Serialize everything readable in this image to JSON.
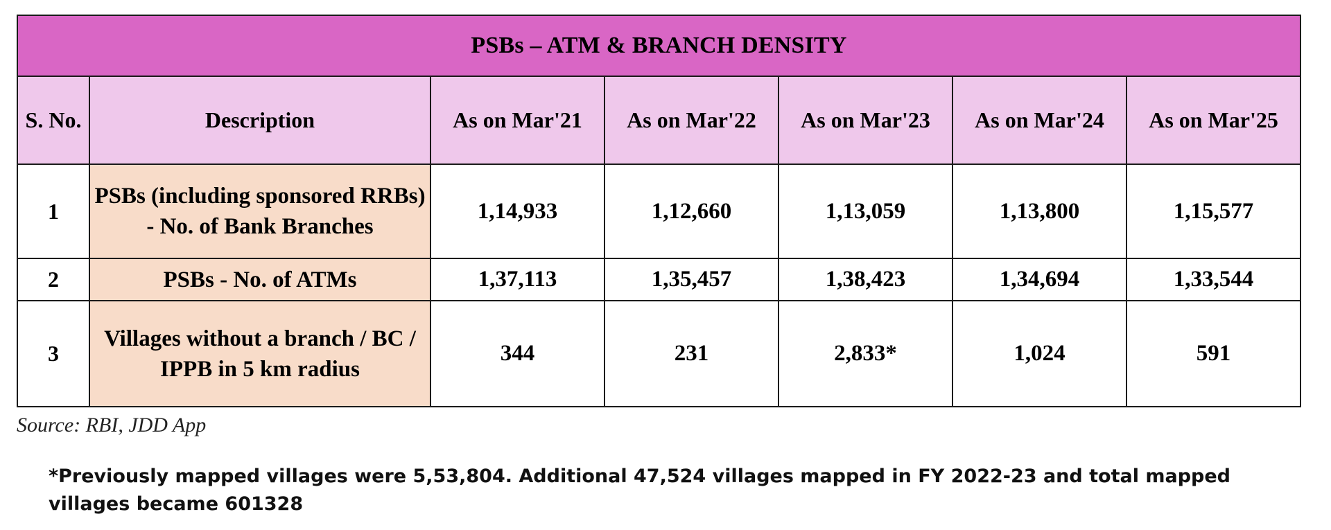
{
  "table": {
    "title": "PSBs – ATM & BRANCH DENSITY",
    "headers": {
      "sno": "S. No.",
      "description": "Description",
      "periods": [
        "As on Mar'21",
        "As on Mar'22",
        "As on Mar'23",
        "As on Mar'24",
        "As on Mar'25"
      ]
    },
    "rows": [
      {
        "sno": "1",
        "description": "PSBs (including sponsored RRBs) - No. of Bank Branches",
        "values": [
          "1,14,933",
          "1,12,660",
          "1,13,059",
          "1,13,800",
          "1,15,577"
        ]
      },
      {
        "sno": "2",
        "description": "PSBs - No. of ATMs",
        "values": [
          "1,37,113",
          "1,35,457",
          "1,38,423",
          "1,34,694",
          "1,33,544"
        ]
      },
      {
        "sno": "3",
        "description": "Villages without a branch / BC / IPPB in 5 km radius",
        "values": [
          "344",
          "231",
          "2,833*",
          "1,024",
          "591"
        ]
      }
    ]
  },
  "source": "Source: RBI, JDD App",
  "footnote": "*Previously mapped villages were 5,53,804. Additional 47,524 villages mapped in FY 2022-23 and total mapped villages became 601328",
  "colors": {
    "title_bg": "#d966c5",
    "header_bg": "#efc8eb",
    "description_bg": "#f8dcc9"
  }
}
